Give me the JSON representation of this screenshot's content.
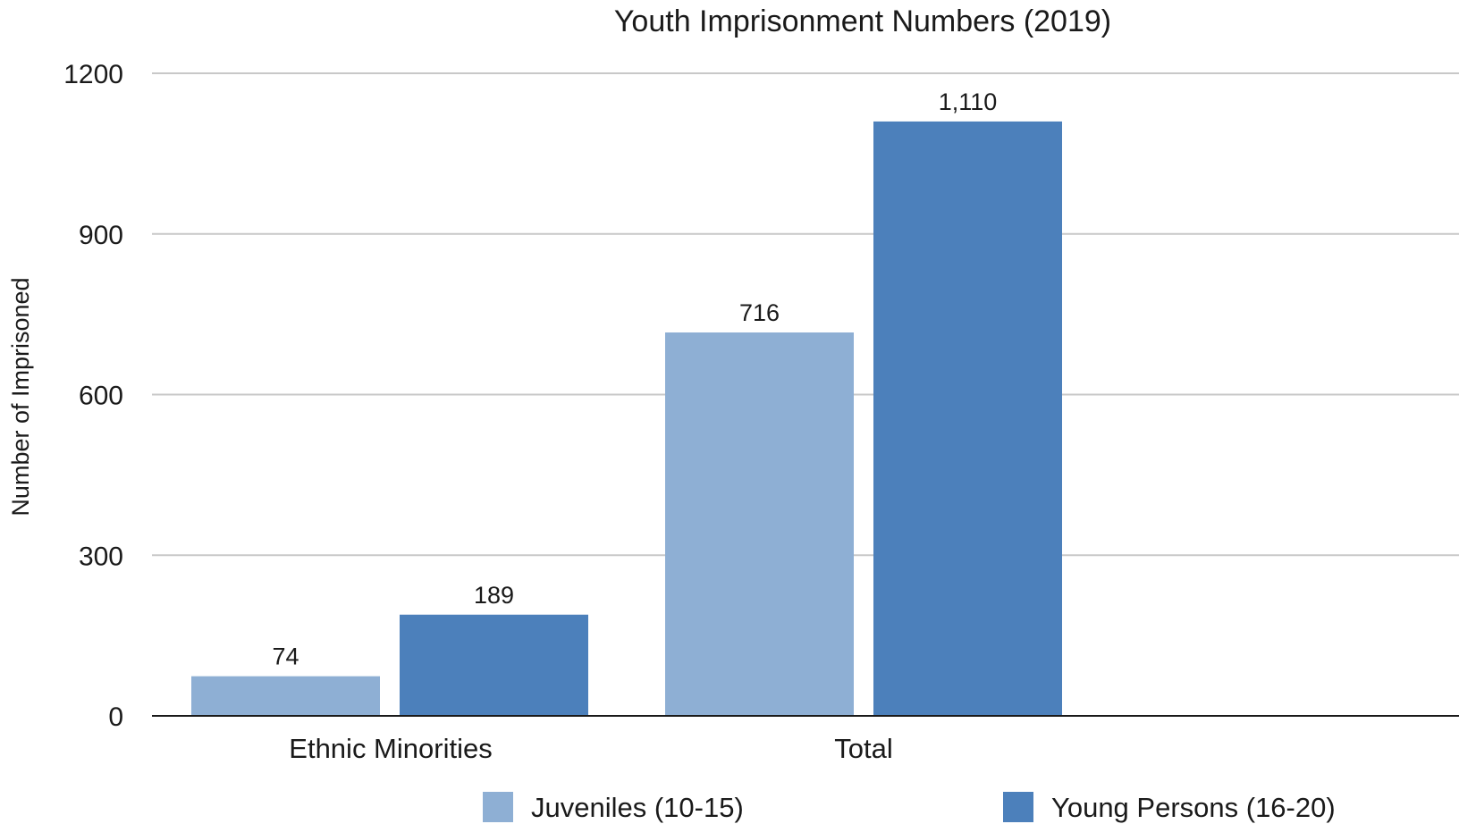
{
  "chart_data": {
    "type": "bar",
    "title": "Youth Imprisonment Numbers (2019)",
    "xlabel": "",
    "ylabel": "Number of Imprisoned",
    "categories": [
      "Ethnic Minorities",
      "Total"
    ],
    "series": [
      {
        "name": "Juveniles (10-15)",
        "values": [
          74,
          716
        ],
        "value_labels": [
          "74",
          "716"
        ],
        "color": "#8eafd4"
      },
      {
        "name": "Young Persons (16-20)",
        "values": [
          189,
          1110
        ],
        "value_labels": [
          "189",
          "1,110"
        ],
        "color": "#4c80bb"
      }
    ],
    "ylim": [
      0,
      1200
    ],
    "yticks": [
      0,
      300,
      600,
      900,
      1200
    ],
    "ytick_labels": [
      "0",
      "300",
      "600",
      "900",
      "1200"
    ],
    "grid": true,
    "legend_position": "bottom"
  }
}
